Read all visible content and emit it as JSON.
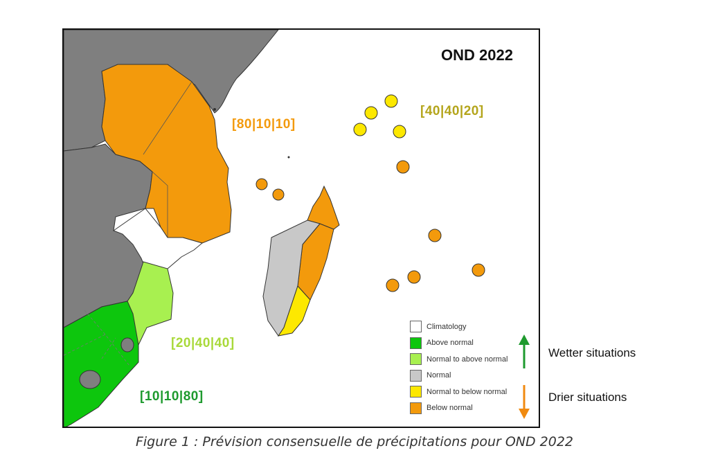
{
  "map": {
    "title": "OND 2022",
    "region_labels": {
      "north": {
        "text": "[80|10|10]",
        "color": "#f39a0c"
      },
      "islands": {
        "text": "[40|40|20]",
        "color": "#b4a51c"
      },
      "mozambique_south": {
        "text": "[20|40|40]",
        "color": "#a9d93a"
      },
      "southern_africa": {
        "text": "[10|10|80]",
        "color": "#1e9a2e"
      }
    },
    "legend": [
      {
        "label": "Climatology",
        "color": "#ffffff"
      },
      {
        "label": "Above normal",
        "color": "#0dc60d"
      },
      {
        "label": "Normal to above normal",
        "color": "#a8f050"
      },
      {
        "label": "Normal",
        "color": "#c8c8c8"
      },
      {
        "label": "Normal to below normal",
        "color": "#fde800"
      },
      {
        "label": "Below normal",
        "color": "#f39a0c"
      }
    ],
    "trend_wetter": {
      "label": "Wetter situations",
      "arrow": "arrow-up-icon",
      "color": "#1e9a2e"
    },
    "trend_drier": {
      "label": "Drier situations",
      "arrow": "arrow-down-icon",
      "color": "#f08a10"
    }
  },
  "caption": "Figure 1 : Prévision consensuelle de précipitations pour OND 2022"
}
